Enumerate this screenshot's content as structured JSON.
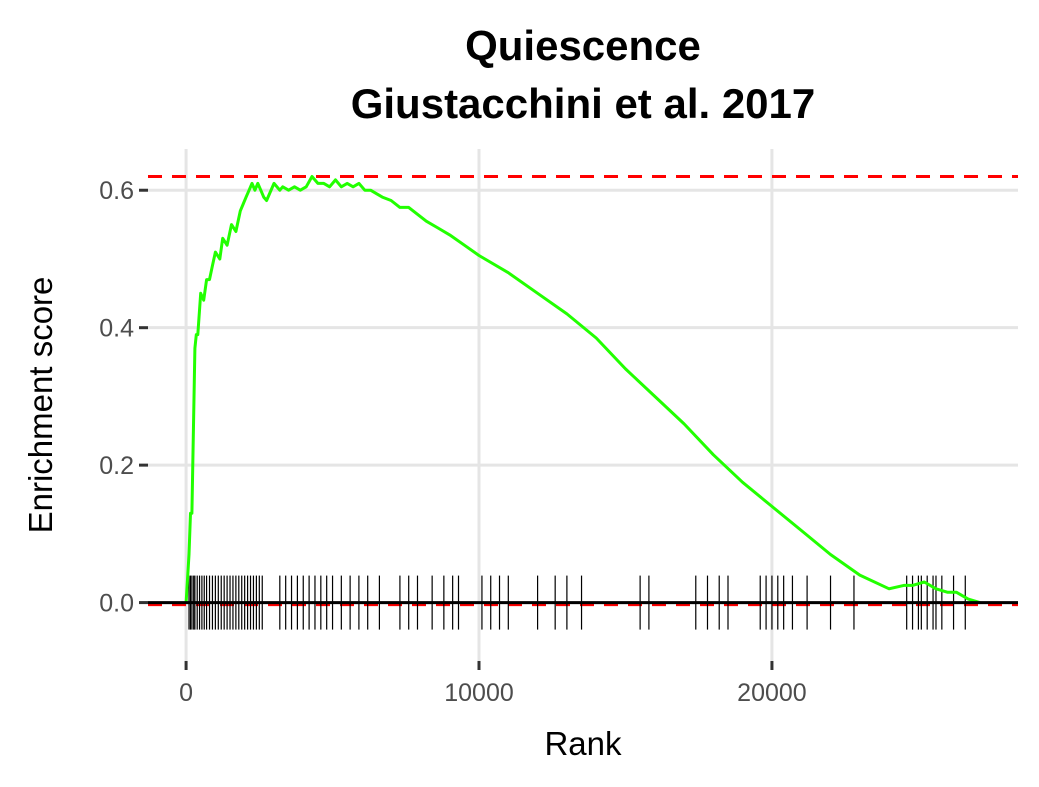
{
  "chart_data": {
    "type": "line",
    "title": [
      "Quiescence",
      "Giustacchini et al. 2017"
    ],
    "xlabel": "Rank",
    "ylabel": "Enrichment score",
    "xlim": [
      -1300,
      28400
    ],
    "ylim": [
      -0.085,
      0.66
    ],
    "xticks": [
      0,
      10000,
      20000
    ],
    "xtick_labels": [
      "0",
      "10000",
      "20000"
    ],
    "yticks": [
      0.0,
      0.2,
      0.4,
      0.6
    ],
    "ytick_labels": [
      "0.0",
      "0.2",
      "0.4",
      "0.6"
    ],
    "grid": true,
    "colors": {
      "curve": "#22ff00",
      "reference": "#ff0000",
      "zero_line": "#000000",
      "hits": "#000000",
      "grid": "#e5e5e5"
    },
    "max_es": 0.62,
    "min_es": -0.003,
    "series": [
      {
        "x": [
          0,
          100,
          150,
          200,
          250,
          300,
          350,
          400,
          500,
          600,
          700,
          800,
          900,
          1000,
          1150,
          1250,
          1400,
          1550,
          1700,
          1850,
          1950,
          2050,
          2150,
          2250,
          2350,
          2450,
          2550,
          2650,
          2750,
          3000,
          3200,
          3300,
          3500,
          3700,
          3900,
          4100,
          4300,
          4500,
          4700,
          4900,
          5100,
          5300,
          5500,
          5700,
          5900,
          6100,
          6300,
          6500,
          6700,
          7000,
          7300,
          7600,
          7900,
          8200,
          8600,
          9000,
          9500,
          10000,
          11000,
          12000,
          13000,
          14000,
          15000,
          16000,
          17000,
          18000,
          19000,
          20000,
          21000,
          22000,
          23000,
          24000,
          24500,
          24800,
          25200,
          25600,
          26000,
          26300,
          26700,
          27100
        ],
        "y": [
          0.0,
          0.07,
          0.13,
          0.13,
          0.25,
          0.37,
          0.39,
          0.39,
          0.45,
          0.44,
          0.47,
          0.47,
          0.49,
          0.51,
          0.5,
          0.53,
          0.52,
          0.55,
          0.54,
          0.57,
          0.58,
          0.59,
          0.6,
          0.61,
          0.6,
          0.61,
          0.6,
          0.59,
          0.585,
          0.61,
          0.6,
          0.605,
          0.6,
          0.605,
          0.6,
          0.605,
          0.62,
          0.61,
          0.61,
          0.605,
          0.615,
          0.605,
          0.61,
          0.605,
          0.61,
          0.6,
          0.6,
          0.595,
          0.59,
          0.585,
          0.575,
          0.575,
          0.565,
          0.555,
          0.545,
          0.535,
          0.52,
          0.505,
          0.48,
          0.45,
          0.42,
          0.385,
          0.34,
          0.3,
          0.26,
          0.215,
          0.175,
          0.14,
          0.105,
          0.07,
          0.04,
          0.02,
          0.025,
          0.025,
          0.03,
          0.02,
          0.015,
          0.015,
          0.005,
          0.0
        ]
      }
    ],
    "hits": [
      100,
      150,
      200,
      260,
      300,
      380,
      460,
      540,
      620,
      700,
      800,
      900,
      1000,
      1100,
      1200,
      1300,
      1400,
      1500,
      1600,
      1700,
      1800,
      1900,
      2000,
      2100,
      2200,
      2300,
      2400,
      2500,
      2600,
      3200,
      3400,
      3600,
      3800,
      4000,
      4200,
      4400,
      4600,
      4800,
      5000,
      5300,
      5600,
      5900,
      6200,
      6600,
      7300,
      7600,
      7900,
      8400,
      8800,
      9100,
      9300,
      10100,
      10400,
      10700,
      11000,
      12000,
      12600,
      13000,
      13500,
      15500,
      15800,
      17400,
      17800,
      18200,
      18500,
      19600,
      19800,
      20000,
      20200,
      20400,
      20700,
      21200,
      22000,
      22800,
      24600,
      24800,
      25000,
      25100,
      25300,
      25500,
      25600,
      25800,
      26200,
      26600
    ]
  }
}
